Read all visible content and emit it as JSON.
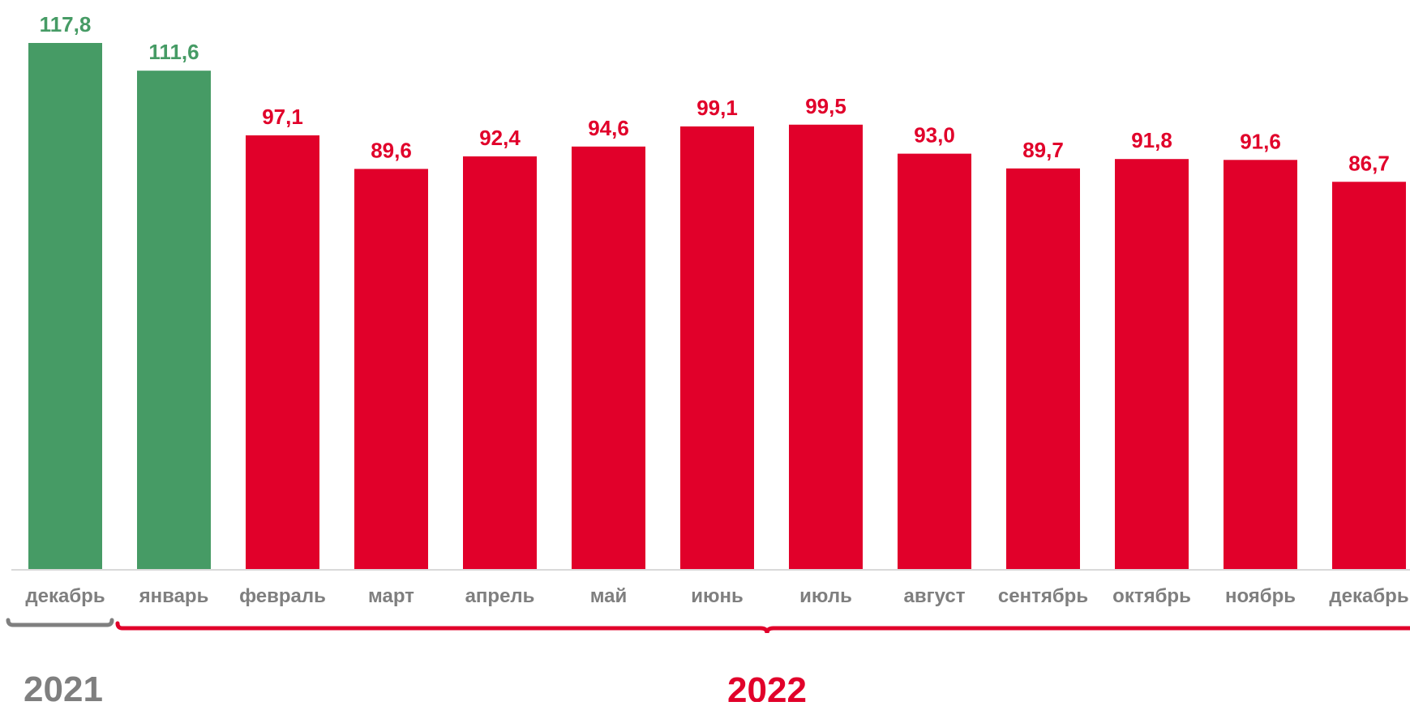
{
  "colors": {
    "green": "#469b65",
    "red": "#e1002a",
    "gray": "#7f7f7f",
    "axis": "#d9d9d9"
  },
  "year_labels": {
    "first": "2021",
    "second": "2022"
  },
  "chart_data": {
    "type": "bar",
    "title": "",
    "xlabel": "",
    "ylabel": "",
    "ylim": [
      0,
      117.8
    ],
    "grid": false,
    "legend": "none",
    "categories": [
      "декабрь",
      "январь",
      "февраль",
      "март",
      "апрель",
      "май",
      "июнь",
      "июль",
      "август",
      "сентябрь",
      "октябрь",
      "ноябрь",
      "декабрь"
    ],
    "values": [
      117.8,
      111.6,
      97.1,
      89.6,
      92.4,
      94.6,
      99.1,
      99.5,
      93.0,
      89.7,
      91.8,
      91.6,
      86.7
    ],
    "value_labels": [
      "117,8",
      "111,6",
      "97,1",
      "89,6",
      "92,4",
      "94,6",
      "99,1",
      "99,5",
      "93,0",
      "89,7",
      "91,8",
      "91,6",
      "86,7"
    ],
    "bar_colors": [
      "#469b65",
      "#469b65",
      "#e1002a",
      "#e1002a",
      "#e1002a",
      "#e1002a",
      "#e1002a",
      "#e1002a",
      "#e1002a",
      "#e1002a",
      "#e1002a",
      "#e1002a",
      "#e1002a"
    ],
    "groups": [
      {
        "label": "2021",
        "categories": [
          "декабрь"
        ],
        "color": "#7f7f7f"
      },
      {
        "label": "2022",
        "categories": [
          "январь",
          "февраль",
          "март",
          "апрель",
          "май",
          "июнь",
          "июль",
          "август",
          "сентябрь",
          "октябрь",
          "ноябрь",
          "декабрь"
        ],
        "color": "#e1002a"
      }
    ]
  }
}
